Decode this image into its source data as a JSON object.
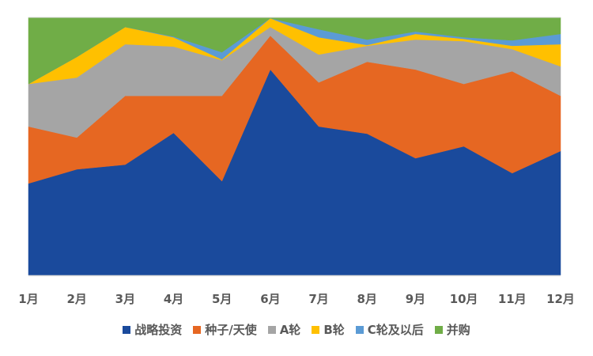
{
  "chart_data": {
    "type": "area",
    "stacked": "percent",
    "title": "",
    "xlabel": "",
    "ylabel": "",
    "ylim": [
      0,
      100
    ],
    "grid": false,
    "legend_position": "bottom",
    "categories": [
      "1月",
      "2月",
      "3月",
      "4月",
      "5月",
      "6月",
      "7月",
      "8月",
      "9月",
      "10月",
      "11月",
      "12月"
    ],
    "series": [
      {
        "name": "战略投资",
        "color": "#1A4A9C",
        "values": [
          35.6,
          41.1,
          42.9,
          55.2,
          36.5,
          79.8,
          57.7,
          54.9,
          45.4,
          50.0,
          39.6,
          48.2
        ]
      },
      {
        "name": "种子/天使",
        "color": "#E66722",
        "values": [
          22.1,
          12.3,
          26.7,
          14.4,
          33.1,
          13.1,
          17.1,
          27.9,
          34.4,
          24.2,
          39.5,
          21.4
        ]
      },
      {
        "name": "A轮",
        "color": "#A5A5A5",
        "values": [
          16.5,
          23.3,
          20.0,
          19.1,
          13.8,
          3.4,
          10.8,
          6.2,
          11.6,
          16.6,
          8.6,
          11.4
        ]
      },
      {
        "name": "B轮",
        "color": "#FFC000",
        "values": [
          0.0,
          8.0,
          6.7,
          3.6,
          0.3,
          3.4,
          6.7,
          0.3,
          2.2,
          0.9,
          1.3,
          8.6
        ]
      },
      {
        "name": "C轮及以后",
        "color": "#5B9BD5",
        "values": [
          0.0,
          0.0,
          0.0,
          0.3,
          2.8,
          0.0,
          3.1,
          2.1,
          0.9,
          0.6,
          2.1,
          4.0
        ]
      },
      {
        "name": "并购",
        "color": "#70AD47",
        "values": [
          25.8,
          15.3,
          3.7,
          7.4,
          13.5,
          0.3,
          4.6,
          8.6,
          5.5,
          7.7,
          8.9,
          6.4
        ]
      }
    ]
  },
  "legend": {
    "items": [
      {
        "label": "战略投资",
        "color": "#1A4A9C"
      },
      {
        "label": "种子/天使",
        "color": "#E66722"
      },
      {
        "label": "A轮",
        "color": "#A5A5A5"
      },
      {
        "label": "B轮",
        "color": "#FFC000"
      },
      {
        "label": "C轮及以后",
        "color": "#5B9BD5"
      },
      {
        "label": "并购",
        "color": "#70AD47"
      }
    ]
  },
  "axis": {
    "x_labels": [
      "1月",
      "2月",
      "3月",
      "4月",
      "5月",
      "6月",
      "7月",
      "8月",
      "9月",
      "10月",
      "11月",
      "12月"
    ],
    "axis_line_color": "#D9D9D9"
  }
}
